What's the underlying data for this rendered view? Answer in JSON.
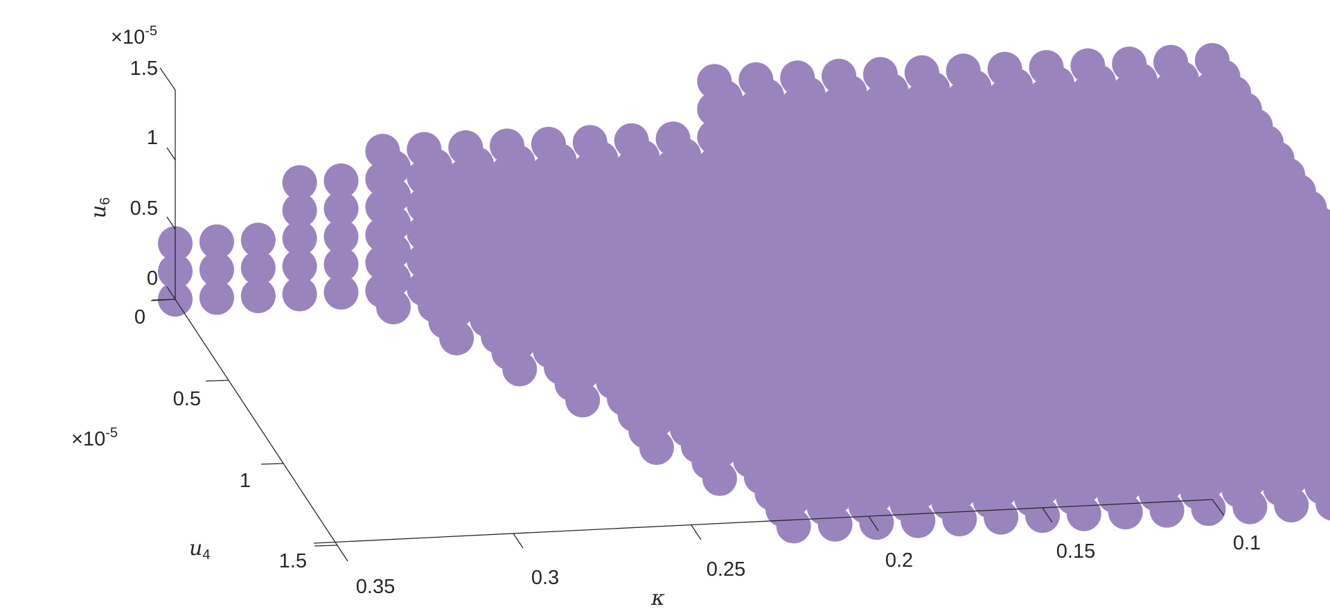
{
  "chart_data": {
    "type": "scatter",
    "title": "",
    "point_color": "#9a84be",
    "axes": {
      "x": {
        "label_base": "κ",
        "ticks": [
          "0.35",
          "0.3",
          "0.25",
          "0.2",
          "0.15",
          "0.1"
        ],
        "range": [
          0.1,
          0.35
        ]
      },
      "y": {
        "label_base": "u",
        "label_sub": "4",
        "ticks": [
          "0",
          "0.5",
          "1",
          "1.5"
        ],
        "multiplier_base": "×10",
        "multiplier_exp": "-5",
        "range": [
          0,
          1.5e-05
        ]
      },
      "z": {
        "label_base": "u",
        "label_sub": "6",
        "ticks": [
          "0",
          "0.5",
          "1",
          "1.5"
        ],
        "multiplier_base": "×10",
        "multiplier_exp": "-5",
        "range": [
          0,
          1.5e-05
        ]
      }
    },
    "kappa_grid": [
      0.1,
      0.11,
      0.12,
      0.13,
      0.14,
      0.15,
      0.16,
      0.17,
      0.18,
      0.19,
      0.2,
      0.21,
      0.22,
      0.23,
      0.24,
      0.25,
      0.26,
      0.27,
      0.28,
      0.29,
      0.3,
      0.31,
      0.32,
      0.33,
      0.34,
      0.35
    ],
    "u4_grid": [
      0,
      1e-06,
      2e-06,
      3e-06,
      4e-06,
      5e-06,
      6e-06,
      7e-06,
      8e-06,
      9e-06,
      1e-05,
      1.1e-05,
      1.2e-05,
      1.3e-05,
      1.4e-05,
      1.5e-05
    ],
    "u6_grid": [
      0,
      2e-06,
      4e-06,
      6e-06,
      8e-06,
      1e-05,
      1.2e-05,
      1.4e-05
    ],
    "region_boundary_u4": {
      "kappa": [
        0.1,
        0.15,
        0.2,
        0.24,
        0.26,
        0.28,
        0.3,
        0.35
      ],
      "u4_max": [
        1.5e-05,
        1.5e-05,
        1.5e-05,
        1.5e-05,
        1e-05,
        5e-06,
        1e-06,
        0
      ]
    }
  }
}
